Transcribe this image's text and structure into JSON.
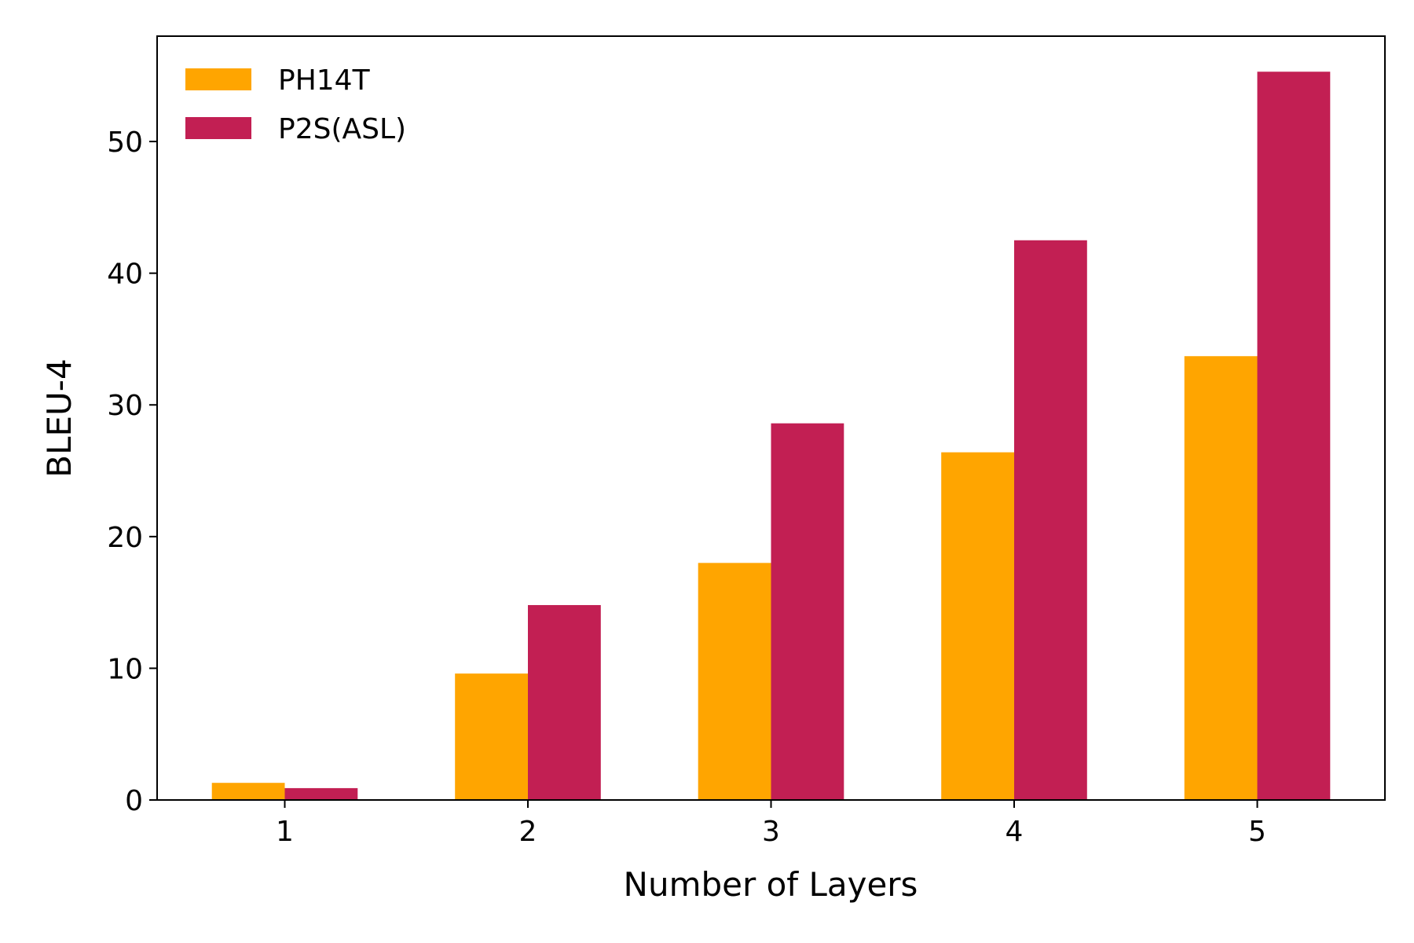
{
  "chart_data": {
    "type": "bar",
    "title": "",
    "xlabel": "Number of Layers",
    "ylabel": "BLEU-4",
    "categories": [
      "1",
      "2",
      "3",
      "4",
      "5"
    ],
    "series": [
      {
        "name": "PH14T",
        "color": "#ffa500",
        "values": [
          1.3,
          9.6,
          18.0,
          26.4,
          33.7
        ]
      },
      {
        "name": "P2S(ASL)",
        "color": "#c21f53",
        "values": [
          0.9,
          14.8,
          28.6,
          42.5,
          55.3
        ]
      }
    ],
    "ylim": [
      0,
      58
    ],
    "yticks": [
      0,
      10,
      20,
      30,
      40,
      50
    ],
    "grid": false,
    "legend": "top-left"
  }
}
